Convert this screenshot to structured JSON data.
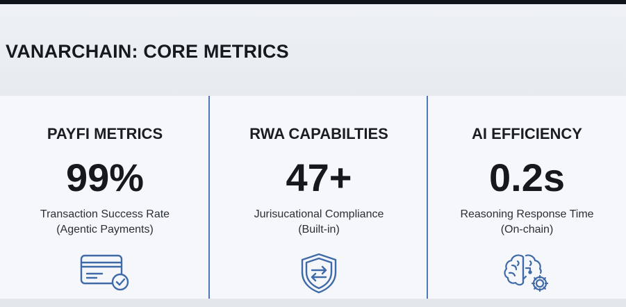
{
  "page": {
    "title": "VANARCHAIN: CORE METRICS"
  },
  "metrics": [
    {
      "title": "PAYFI METRICS",
      "value": "99%",
      "desc_line1": "Transaction Success Rate",
      "desc_line2": "(Agentic Payments)",
      "icon": "credit-card-check-icon"
    },
    {
      "title": "RWA CAPABILTIES",
      "value": "47+",
      "desc_line1": "Jurisucational Compliance",
      "desc_line2": "(Built-in)",
      "icon": "shield-exchange-icon"
    },
    {
      "title": "AI EFFICIENCY",
      "value": "0.2s",
      "desc_line1": "Reasoning Response Time",
      "desc_line2": "(On-chain)",
      "icon": "brain-gear-icon"
    }
  ],
  "colors": {
    "accent": "#4f78b7",
    "icon_stroke": "#3f6aa8",
    "text": "#16191e"
  }
}
